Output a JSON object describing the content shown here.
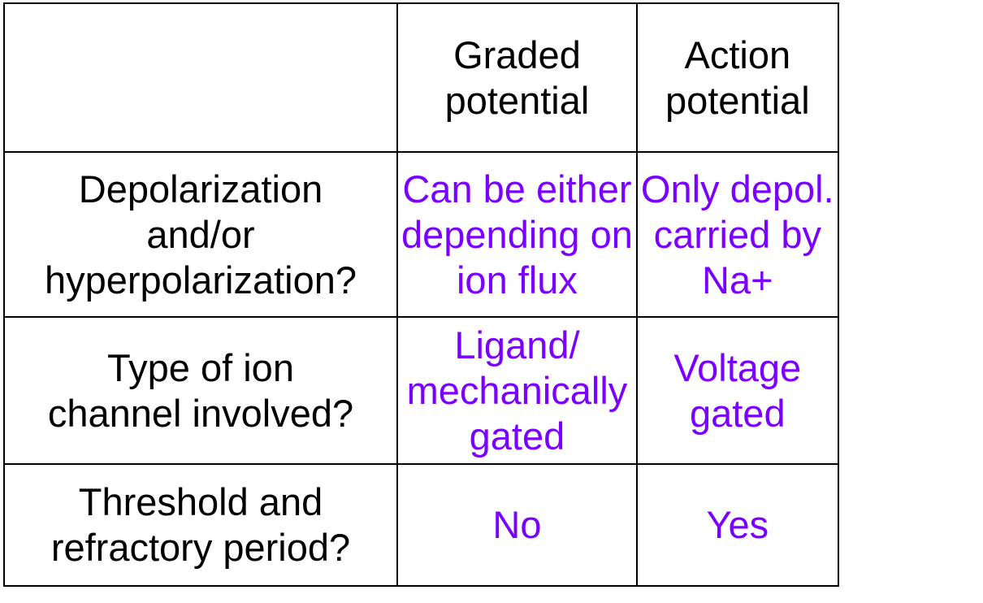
{
  "table": {
    "column_headers": [
      "",
      "Graded\npotential",
      "Action\npotential"
    ],
    "rows": [
      {
        "label": "Depolarization\nand/or\nhyperpolarization?",
        "graded": "Can be either\ndepending on\nion flux",
        "action": "Only depol.\ncarried by\nNa+"
      },
      {
        "label": "Type of ion\nchannel involved?",
        "graded": "Ligand/\nmechanically\ngated",
        "action": "Voltage\ngated"
      },
      {
        "label": "Threshold and\nrefractory period?",
        "graded": "No",
        "action": "Yes"
      }
    ]
  },
  "colors": {
    "label_text": "#000000",
    "answer_text": "#7a00ff",
    "border": "#000000",
    "background": "#ffffff"
  }
}
